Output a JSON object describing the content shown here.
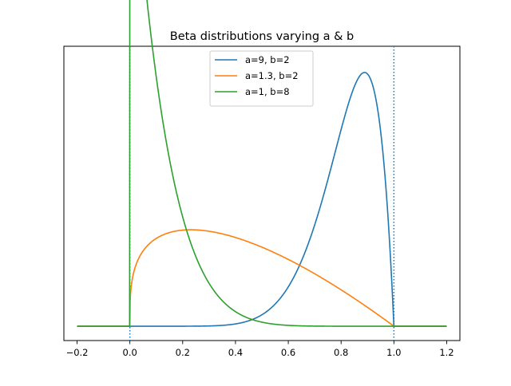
{
  "chart_data": {
    "type": "line",
    "title": "Beta distributions varying a & b",
    "xlabel": "",
    "ylabel": "",
    "xlim": [
      -0.25,
      1.25
    ],
    "ylim": [
      -0.22,
      4.3
    ],
    "x_ticks": [
      -0.2,
      0.0,
      0.2,
      0.4,
      0.6,
      0.8,
      1.0,
      1.2
    ],
    "x_tick_labels": [
      "−0.2",
      "0.0",
      "0.2",
      "0.4",
      "0.6",
      "0.8",
      "1.0",
      "1.2"
    ],
    "y_ticks_visible": false,
    "grid": false,
    "legend_position": "top-center",
    "vertical_lines": [
      {
        "x": 0.0,
        "style": "dotted",
        "color": "#1f77b4"
      },
      {
        "x": 1.0,
        "style": "dotted",
        "color": "#1f77b4"
      }
    ],
    "x_range_plotted": [
      -0.2,
      1.2
    ],
    "series": [
      {
        "name": "a=9, b=2",
        "distribution": "beta",
        "a": 9,
        "b": 2,
        "color": "#1f77b4"
      },
      {
        "name": "a=1.3, b=2",
        "distribution": "beta",
        "a": 1.3,
        "b": 2,
        "color": "#ff7f0e"
      },
      {
        "name": "a=1, b=8",
        "distribution": "beta",
        "a": 1,
        "b": 8,
        "color": "#2ca02c"
      }
    ]
  }
}
